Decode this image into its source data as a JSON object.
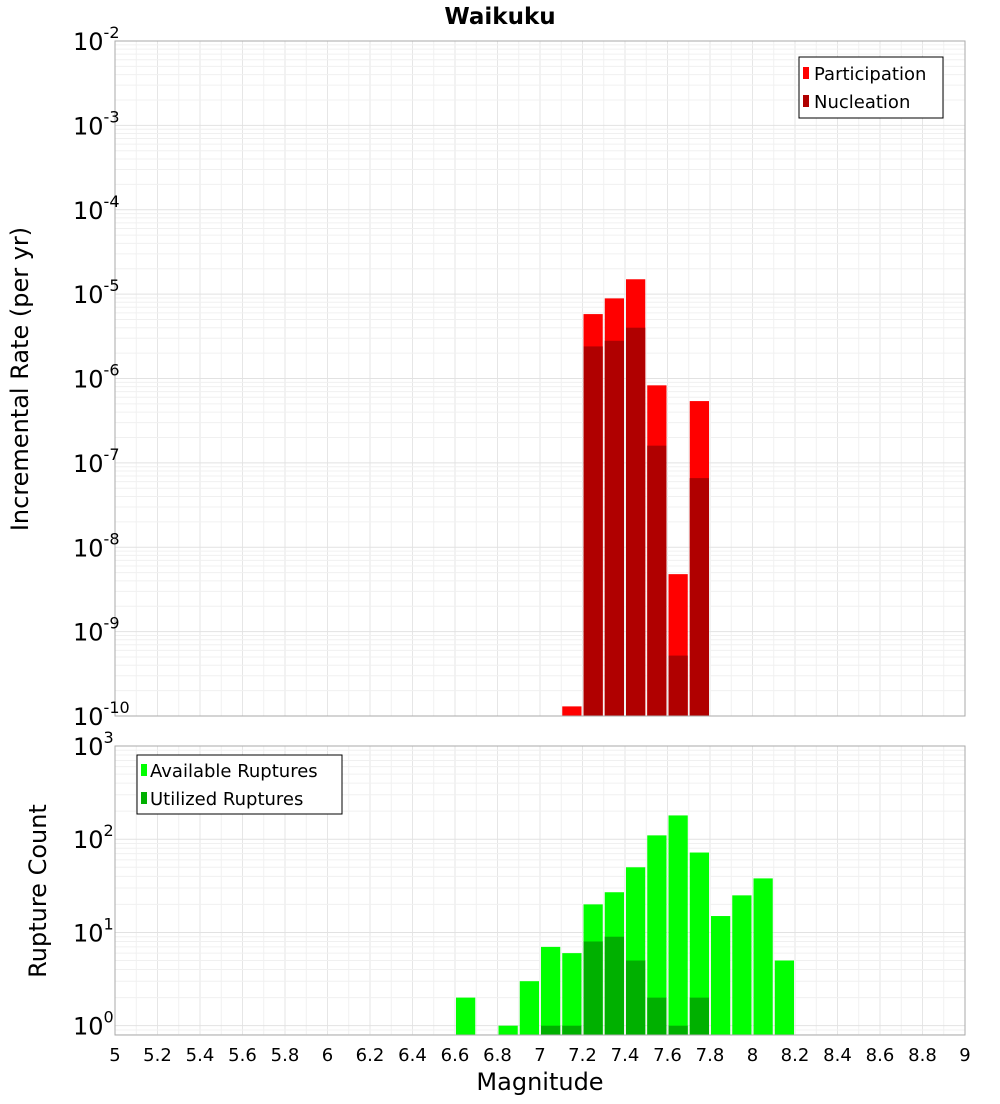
{
  "chart_data": {
    "type": "bar",
    "title": "Waikuku",
    "xlabel": "Magnitude",
    "xlim": [
      5,
      9
    ],
    "x_ticks": [
      "5",
      "5.2",
      "5.4",
      "5.6",
      "5.8",
      "6",
      "6.2",
      "6.4",
      "6.6",
      "6.8",
      "7",
      "7.2",
      "7.4",
      "7.6",
      "7.8",
      "8",
      "8.2",
      "8.4",
      "8.6",
      "8.8",
      "9"
    ],
    "bin_width": 0.1,
    "panels": [
      {
        "name": "rate",
        "ylabel": "Incremental Rate (per yr)",
        "yscale": "log",
        "ylim_exp": [
          -10,
          -2
        ],
        "y_ticks": [
          {
            "base": "10",
            "exp": "-2"
          },
          {
            "base": "10",
            "exp": "-3"
          },
          {
            "base": "10",
            "exp": "-4"
          },
          {
            "base": "10",
            "exp": "-5"
          },
          {
            "base": "10",
            "exp": "-6"
          },
          {
            "base": "10",
            "exp": "-7"
          },
          {
            "base": "10",
            "exp": "-8"
          },
          {
            "base": "10",
            "exp": "-9"
          },
          {
            "base": "10",
            "exp": "-10"
          }
        ],
        "legend": {
          "position": "top-right",
          "entries": [
            "Participation",
            "Nucleation"
          ]
        },
        "series": [
          {
            "name": "Participation",
            "color": "#ff0000",
            "x": [
              7.15,
              7.25,
              7.35,
              7.45,
              7.55,
              7.65,
              7.75
            ],
            "values": [
              1.3e-10,
              5.8e-06,
              8.9e-06,
              1.5e-05,
              8.3e-07,
              4.8e-09,
              5.4e-07
            ]
          },
          {
            "name": "Nucleation",
            "color": "#b00000",
            "x": [
              7.25,
              7.35,
              7.45,
              7.55,
              7.65,
              7.75
            ],
            "values": [
              2.4e-06,
              2.8e-06,
              4e-06,
              1.6e-07,
              5.2e-10,
              6.6e-08
            ]
          }
        ]
      },
      {
        "name": "count",
        "ylabel": "Rupture Count",
        "yscale": "log",
        "ylim_exp": [
          -0.1,
          3
        ],
        "y_ticks": [
          {
            "base": "10",
            "exp": "3"
          },
          {
            "base": "10",
            "exp": "2"
          },
          {
            "base": "10",
            "exp": "1"
          },
          {
            "base": "10",
            "exp": "0"
          }
        ],
        "legend": {
          "position": "top-left",
          "entries": [
            "Available Ruptures",
            "Utilized Ruptures"
          ]
        },
        "series": [
          {
            "name": "Available Ruptures",
            "color": "#00ff00",
            "x": [
              6.65,
              6.85,
              6.95,
              7.05,
              7.15,
              7.25,
              7.35,
              7.45,
              7.55,
              7.65,
              7.75,
              7.85,
              7.95,
              8.05,
              8.15
            ],
            "values": [
              2,
              1,
              3,
              7,
              6,
              20,
              27,
              50,
              110,
              180,
              72,
              15,
              25,
              38,
              5
            ]
          },
          {
            "name": "Utilized Ruptures",
            "color": "#00b000",
            "x": [
              7.05,
              7.15,
              7.25,
              7.35,
              7.45,
              7.55,
              7.65,
              7.75
            ],
            "values": [
              1,
              1,
              8,
              9,
              5,
              2,
              1,
              2
            ]
          }
        ]
      }
    ]
  }
}
